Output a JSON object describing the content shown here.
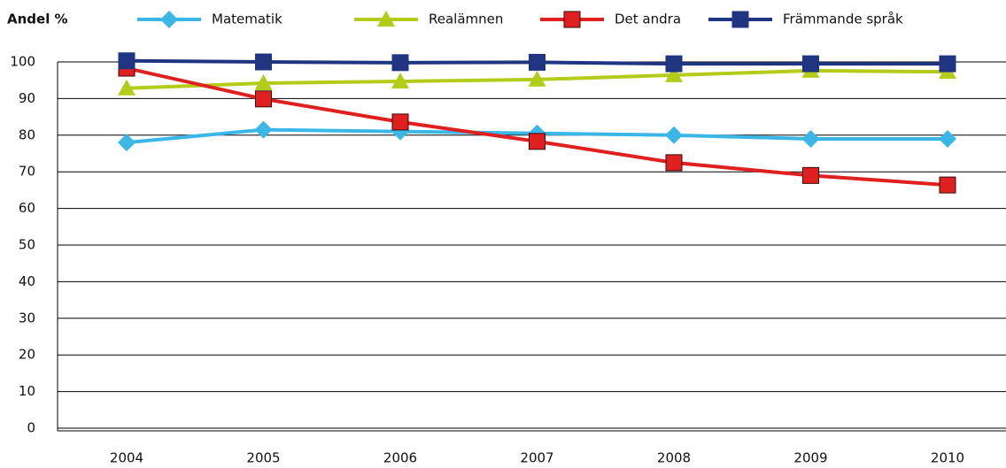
{
  "chart_data": {
    "type": "line",
    "title": "Andel %",
    "categories": [
      "2004",
      "2005",
      "2006",
      "2007",
      "2008",
      "2009",
      "2010"
    ],
    "series": [
      {
        "name": "Matematik",
        "color": "#3ab7e6",
        "marker": "diamond",
        "values": [
          78,
          81.5,
          81,
          80.5,
          80,
          79,
          79
        ]
      },
      {
        "name": "Realämnen",
        "color": "#b3cc19",
        "marker": "triangle",
        "values": [
          92.8,
          94.2,
          94.7,
          95.2,
          96.4,
          97.6,
          97.3
        ]
      },
      {
        "name": "Det andra",
        "color": "#e0201f",
        "marker": "square",
        "values": [
          98.3,
          89.9,
          83.6,
          78.3,
          72.5,
          69,
          66.4
        ]
      },
      {
        "name": "Främmande språk",
        "color": "#1f3582",
        "marker": "square",
        "values": [
          100.3,
          100,
          99.8,
          99.9,
          99.5,
          99.5,
          99.5
        ]
      }
    ],
    "ylim": [
      0,
      100
    ],
    "yticks": [
      0,
      10,
      20,
      30,
      40,
      50,
      60,
      70,
      80,
      90,
      100
    ],
    "grid": true,
    "legend": "top"
  }
}
